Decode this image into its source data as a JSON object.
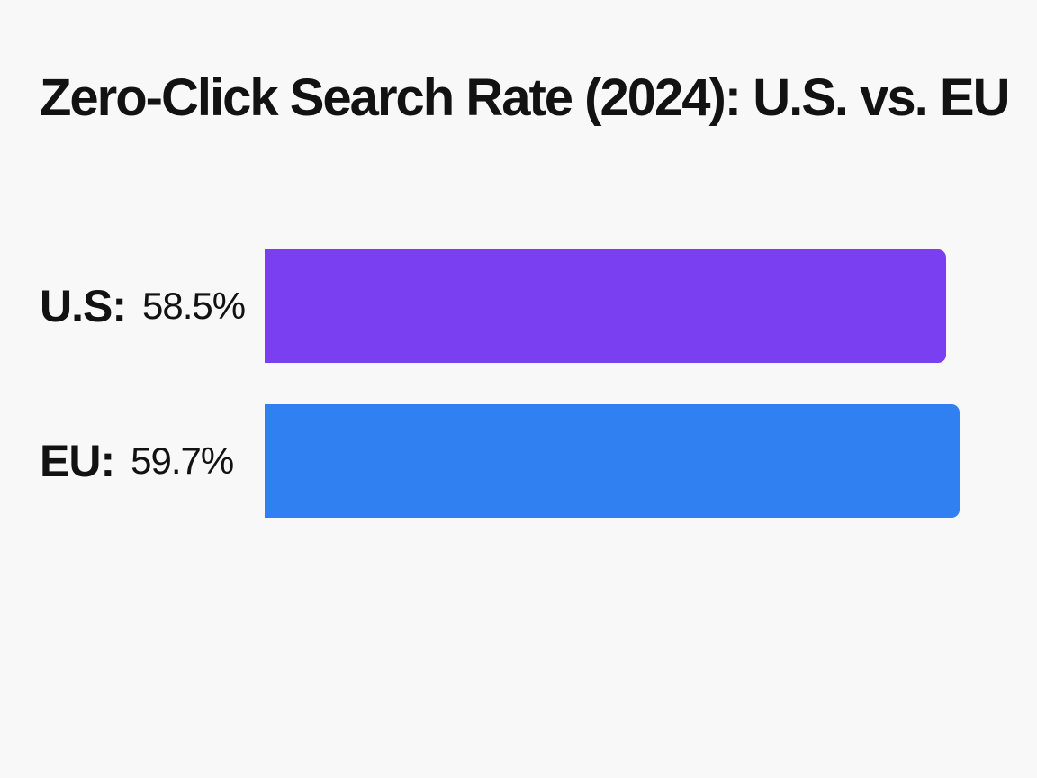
{
  "chart_data": {
    "type": "bar",
    "orientation": "horizontal",
    "title": "Zero-Click Search Rate (2024): U.S. vs. EU",
    "categories": [
      "U.S:",
      "EU:"
    ],
    "values": [
      58.5,
      59.7
    ],
    "value_labels": [
      "58.5%",
      "59.7%"
    ],
    "unit": "%",
    "colors": [
      "#7a3ff0",
      "#3180f2"
    ],
    "grid": false,
    "legend": "none"
  }
}
